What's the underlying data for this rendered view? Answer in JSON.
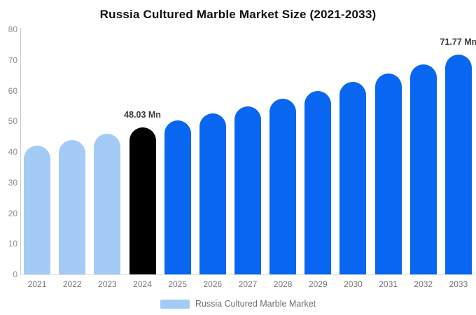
{
  "title": "Russia Cultured Marble Market Size (2021-2033)",
  "chart_data": {
    "type": "bar",
    "title": "Russia Cultured Marble Market Size (2021-2033)",
    "categories": [
      "2021",
      "2022",
      "2023",
      "2024",
      "2025",
      "2026",
      "2027",
      "2028",
      "2029",
      "2030",
      "2031",
      "2032",
      "2033"
    ],
    "values": [
      42.0,
      43.9,
      45.9,
      48.03,
      50.2,
      52.5,
      54.9,
      57.4,
      60.0,
      62.8,
      65.6,
      68.6,
      71.77
    ],
    "value_segments": [
      "historical",
      "historical",
      "historical",
      "current",
      "forecast",
      "forecast",
      "forecast",
      "forecast",
      "forecast",
      "forecast",
      "forecast",
      "forecast",
      "forecast"
    ],
    "unit": "Mn",
    "data_labels": [
      {
        "category": "2024",
        "text": "48.03 Mn"
      },
      {
        "category": "2033",
        "text": "71.77 Mn"
      }
    ],
    "ylim": [
      0,
      80
    ],
    "y_ticks": [
      0,
      10,
      20,
      30,
      40,
      50,
      60,
      70,
      80
    ],
    "grid": false,
    "xlabel": "",
    "ylabel": "",
    "legend_position": "bottom",
    "legend": [
      {
        "label": "Russia Cultured Marble Market",
        "color": "#a3cbf5"
      }
    ],
    "colors": {
      "historical": "#a3cbf5",
      "current": "#000000",
      "forecast": "#0866f0"
    },
    "axis_text_color": "#8c8c8c",
    "x_axis_text_color": "#757575"
  }
}
